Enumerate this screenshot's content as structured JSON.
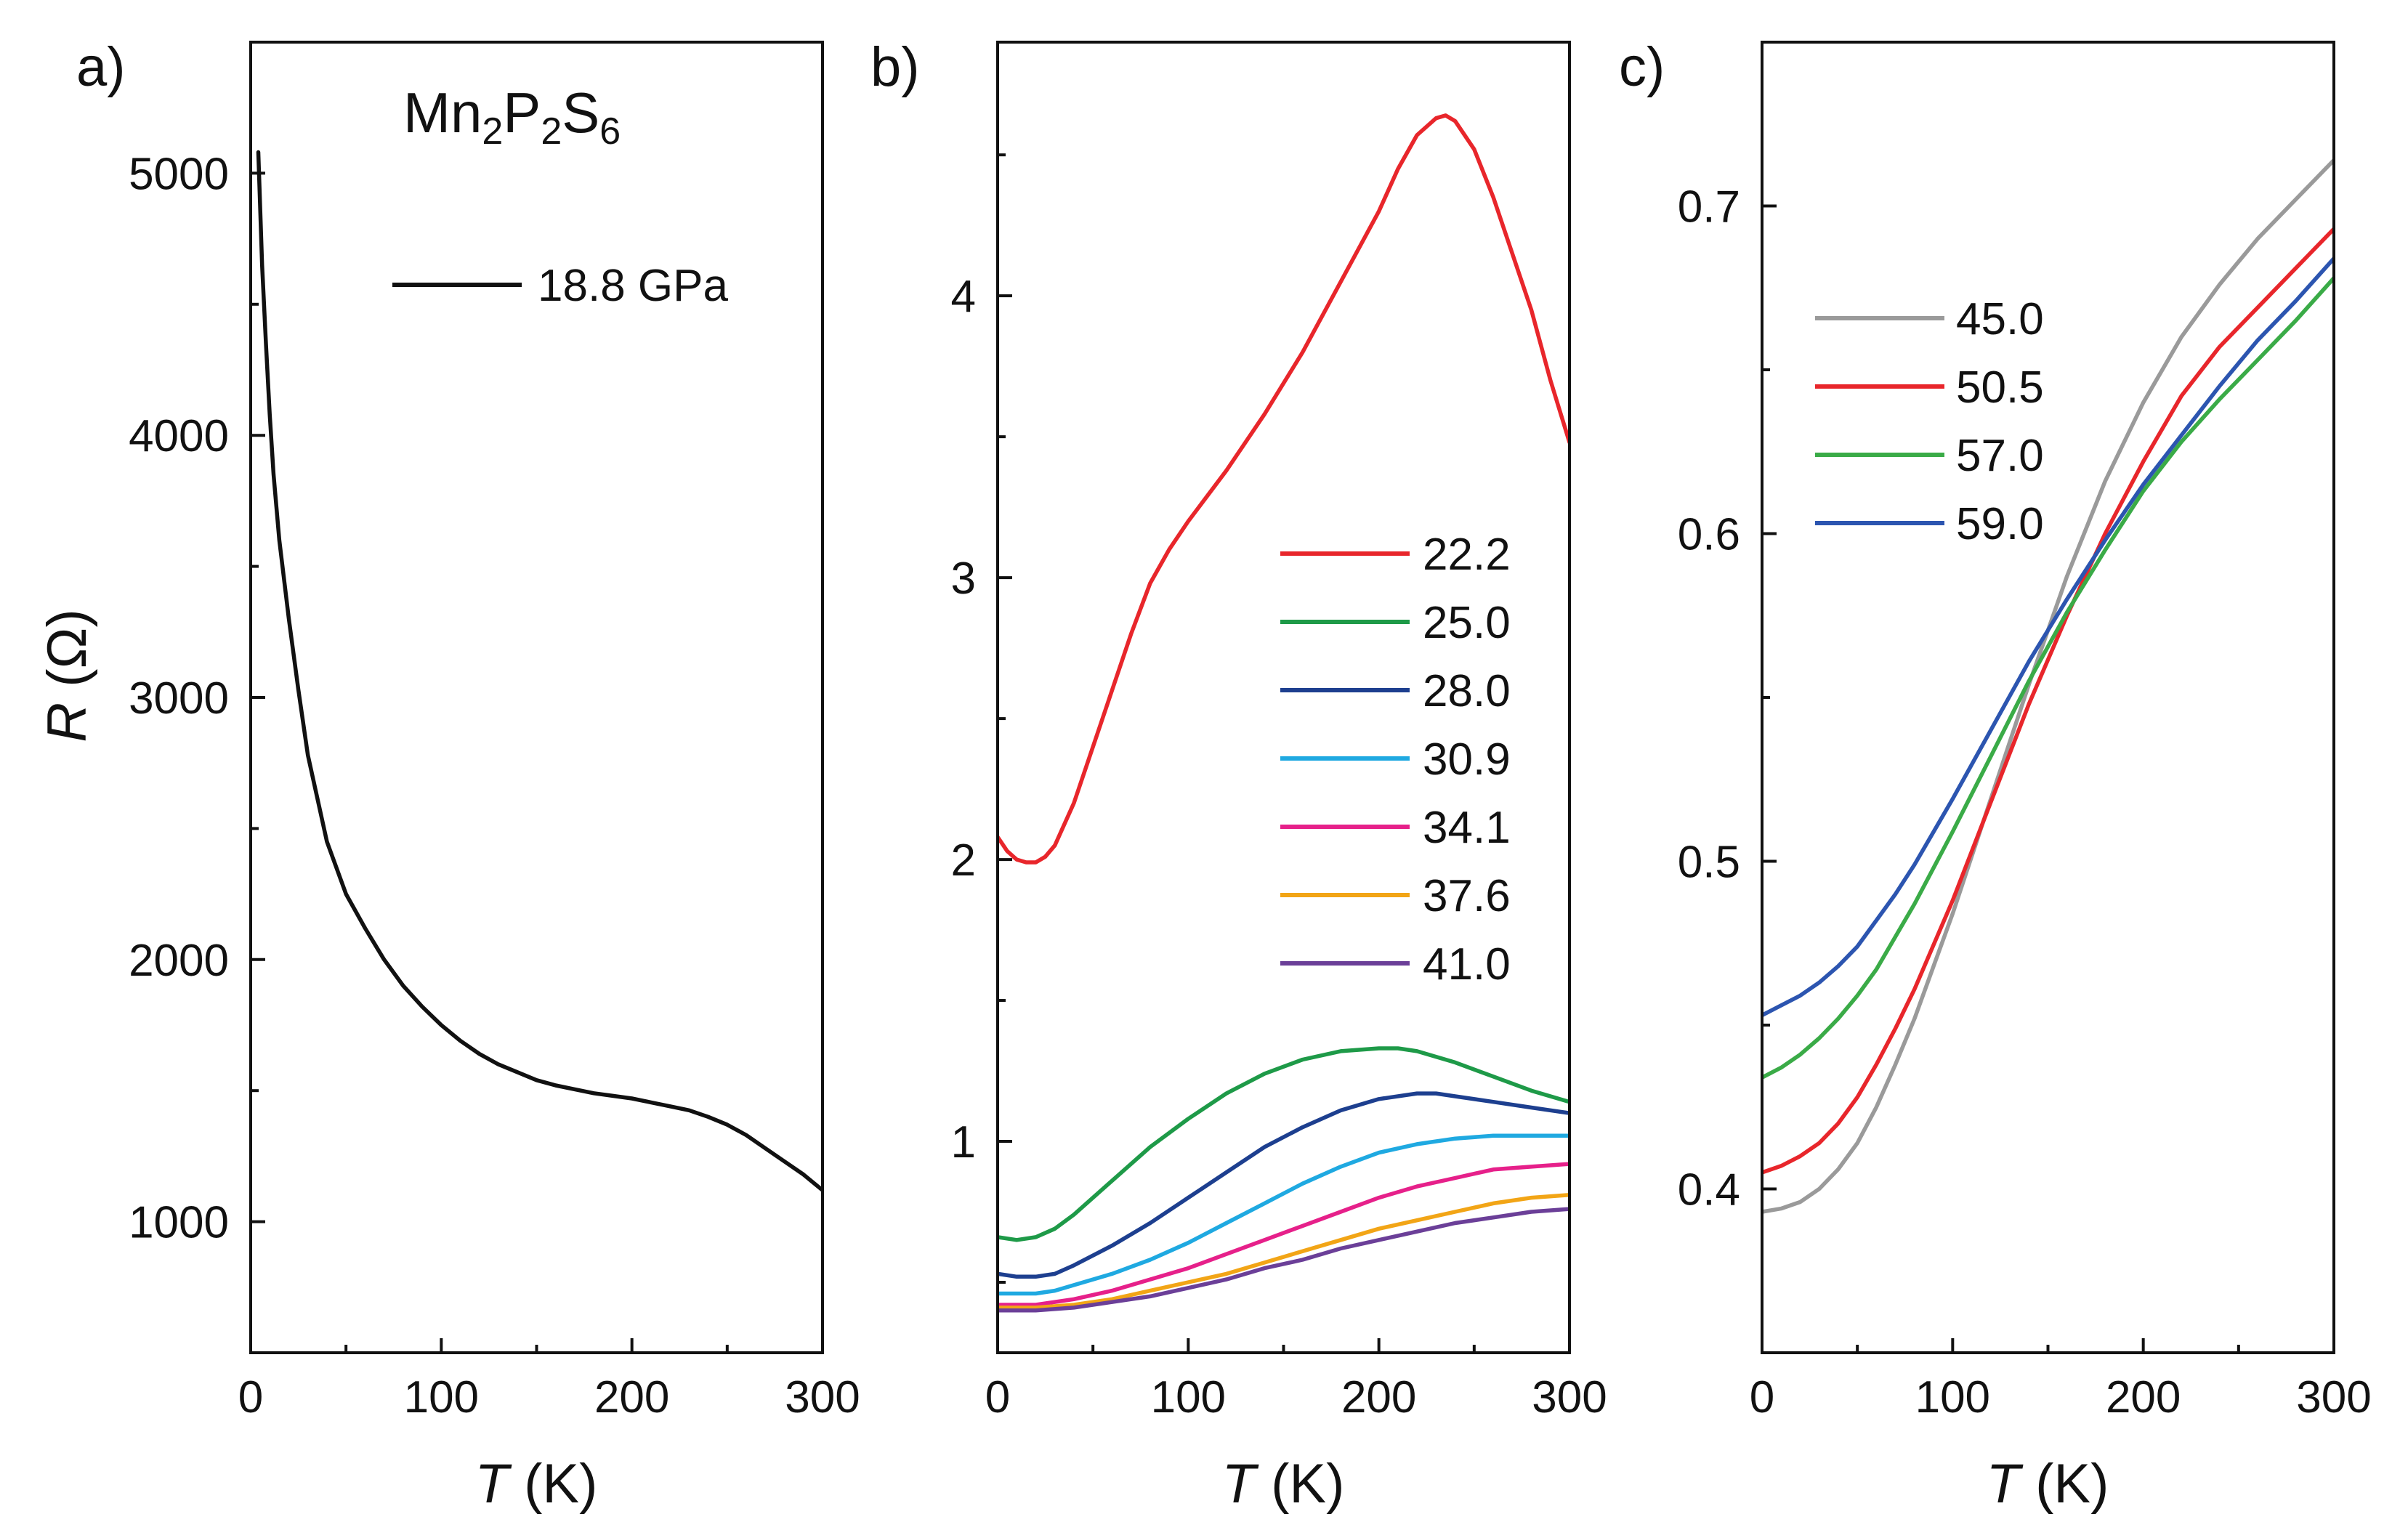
{
  "chart_data": [
    {
      "panel": "a)",
      "type": "line",
      "title": "Mn2P2S6",
      "title_parts": {
        "base1": "Mn",
        "sub1": "2",
        "base2": "P",
        "sub2": "2",
        "base3": "S",
        "sub3": "6"
      },
      "xlabel": {
        "italic": "T",
        "unit": " (K)"
      },
      "ylabel": {
        "italic": "R",
        "unit": " (Ω)"
      },
      "xlim": [
        0,
        300
      ],
      "ylim": [
        500,
        5500
      ],
      "xticks": [
        0,
        100,
        200,
        300
      ],
      "xtick_labels": [
        "0",
        "100",
        "200",
        "300"
      ],
      "yticks": [
        1000,
        2000,
        3000,
        4000,
        5000
      ],
      "ytick_labels": [
        "1000",
        "2000",
        "3000",
        "4000",
        "5000"
      ],
      "legend_position": "top-right",
      "series": [
        {
          "name": "18.8 GPa",
          "color": "#111111",
          "x": [
            4,
            6,
            8,
            10,
            12,
            15,
            20,
            25,
            30,
            40,
            50,
            60,
            70,
            80,
            90,
            100,
            110,
            120,
            130,
            140,
            150,
            160,
            170,
            180,
            190,
            200,
            210,
            220,
            230,
            240,
            250,
            260,
            270,
            280,
            290,
            300
          ],
          "y": [
            5080,
            4650,
            4350,
            4080,
            3850,
            3600,
            3300,
            3030,
            2780,
            2450,
            2250,
            2120,
            2000,
            1900,
            1820,
            1750,
            1690,
            1640,
            1600,
            1570,
            1540,
            1520,
            1505,
            1490,
            1480,
            1470,
            1455,
            1440,
            1425,
            1400,
            1370,
            1330,
            1280,
            1230,
            1180,
            1120
          ]
        }
      ]
    },
    {
      "panel": "b)",
      "type": "line",
      "xlabel": {
        "italic": "T",
        "unit": " (K)"
      },
      "ylabel": "",
      "xlim": [
        0,
        300
      ],
      "ylim": [
        0.25,
        4.9
      ],
      "xticks": [
        0,
        100,
        200,
        300
      ],
      "xtick_labels": [
        "0",
        "100",
        "200",
        "300"
      ],
      "yticks": [
        1,
        2,
        3,
        4
      ],
      "ytick_labels": [
        "1",
        "2",
        "3",
        "4"
      ],
      "minor_yticks": [
        0.5,
        1.5,
        2.5,
        3.5,
        4.5
      ],
      "legend_position": "center-right",
      "series": [
        {
          "name": "22.2",
          "color": "#e8262b",
          "x": [
            0,
            5,
            10,
            15,
            20,
            25,
            30,
            40,
            50,
            60,
            70,
            80,
            90,
            100,
            120,
            140,
            160,
            180,
            200,
            210,
            220,
            230,
            235,
            240,
            250,
            260,
            270,
            280,
            290,
            300
          ],
          "y": [
            2.08,
            2.03,
            2.0,
            1.99,
            1.99,
            2.01,
            2.05,
            2.2,
            2.4,
            2.6,
            2.8,
            2.98,
            3.1,
            3.2,
            3.38,
            3.58,
            3.8,
            4.05,
            4.3,
            4.45,
            4.57,
            4.63,
            4.64,
            4.62,
            4.52,
            4.35,
            4.15,
            3.95,
            3.7,
            3.48
          ]
        },
        {
          "name": "25.0",
          "color": "#1e9a48",
          "x": [
            0,
            10,
            20,
            30,
            40,
            60,
            80,
            100,
            120,
            140,
            160,
            180,
            200,
            210,
            220,
            240,
            260,
            280,
            300
          ],
          "y": [
            0.66,
            0.65,
            0.66,
            0.69,
            0.74,
            0.86,
            0.98,
            1.08,
            1.17,
            1.24,
            1.29,
            1.32,
            1.33,
            1.33,
            1.32,
            1.28,
            1.23,
            1.18,
            1.14
          ]
        },
        {
          "name": "28.0",
          "color": "#1d3f8f",
          "x": [
            0,
            10,
            20,
            30,
            40,
            60,
            80,
            100,
            120,
            140,
            160,
            180,
            200,
            220,
            230,
            240,
            260,
            280,
            300
          ],
          "y": [
            0.53,
            0.52,
            0.52,
            0.53,
            0.56,
            0.63,
            0.71,
            0.8,
            0.89,
            0.98,
            1.05,
            1.11,
            1.15,
            1.17,
            1.17,
            1.16,
            1.14,
            1.12,
            1.1
          ]
        },
        {
          "name": "30.9",
          "color": "#1fa9e1",
          "x": [
            0,
            10,
            20,
            30,
            40,
            60,
            80,
            100,
            120,
            140,
            160,
            180,
            200,
            220,
            240,
            260,
            280,
            300
          ],
          "y": [
            0.46,
            0.46,
            0.46,
            0.47,
            0.49,
            0.53,
            0.58,
            0.64,
            0.71,
            0.78,
            0.85,
            0.91,
            0.96,
            0.99,
            1.01,
            1.02,
            1.02,
            1.02
          ]
        },
        {
          "name": "34.1",
          "color": "#e6208a",
          "x": [
            0,
            20,
            40,
            60,
            80,
            100,
            120,
            140,
            160,
            180,
            200,
            220,
            240,
            260,
            280,
            300
          ],
          "y": [
            0.42,
            0.42,
            0.44,
            0.47,
            0.51,
            0.55,
            0.6,
            0.65,
            0.7,
            0.75,
            0.8,
            0.84,
            0.87,
            0.9,
            0.91,
            0.92
          ]
        },
        {
          "name": "37.6",
          "color": "#f2a516",
          "x": [
            0,
            20,
            40,
            60,
            80,
            100,
            120,
            140,
            160,
            180,
            200,
            220,
            240,
            260,
            280,
            300
          ],
          "y": [
            0.41,
            0.41,
            0.42,
            0.44,
            0.47,
            0.5,
            0.53,
            0.57,
            0.61,
            0.65,
            0.69,
            0.72,
            0.75,
            0.78,
            0.8,
            0.81
          ]
        },
        {
          "name": "41.0",
          "color": "#6b3f98",
          "x": [
            0,
            20,
            40,
            60,
            80,
            100,
            120,
            140,
            160,
            180,
            200,
            220,
            240,
            260,
            280,
            300
          ],
          "y": [
            0.4,
            0.4,
            0.41,
            0.43,
            0.45,
            0.48,
            0.51,
            0.55,
            0.58,
            0.62,
            0.65,
            0.68,
            0.71,
            0.73,
            0.75,
            0.76
          ]
        }
      ]
    },
    {
      "panel": "c)",
      "type": "line",
      "xlabel": {
        "italic": "T",
        "unit": " (K)"
      },
      "ylabel": "",
      "xlim": [
        0,
        300
      ],
      "ylim": [
        0.35,
        0.75
      ],
      "xticks": [
        0,
        100,
        200,
        300
      ],
      "xtick_labels": [
        "0",
        "100",
        "200",
        "300"
      ],
      "yticks": [
        0.4,
        0.5,
        0.6,
        0.7
      ],
      "ytick_labels": [
        "0.4",
        "0.5",
        "0.6",
        "0.7"
      ],
      "minor_yticks": [
        0.45,
        0.55,
        0.65
      ],
      "legend_position": "top-left",
      "series": [
        {
          "name": "45.0",
          "color": "#9a9a9a",
          "x": [
            0,
            10,
            20,
            30,
            40,
            50,
            60,
            70,
            80,
            100,
            120,
            140,
            160,
            180,
            200,
            220,
            240,
            260,
            280,
            300
          ],
          "y": [
            0.393,
            0.394,
            0.396,
            0.4,
            0.406,
            0.414,
            0.425,
            0.438,
            0.452,
            0.484,
            0.519,
            0.554,
            0.587,
            0.616,
            0.64,
            0.66,
            0.676,
            0.69,
            0.702,
            0.714
          ]
        },
        {
          "name": "50.5",
          "color": "#e8262b",
          "x": [
            0,
            10,
            20,
            30,
            40,
            50,
            60,
            70,
            80,
            100,
            120,
            140,
            160,
            180,
            200,
            220,
            240,
            260,
            280,
            300
          ],
          "y": [
            0.405,
            0.407,
            0.41,
            0.414,
            0.42,
            0.428,
            0.438,
            0.449,
            0.461,
            0.488,
            0.518,
            0.548,
            0.575,
            0.6,
            0.622,
            0.642,
            0.657,
            0.669,
            0.681,
            0.693
          ]
        },
        {
          "name": "57.0",
          "color": "#3aab47",
          "x": [
            0,
            10,
            20,
            30,
            40,
            50,
            60,
            70,
            80,
            100,
            120,
            140,
            160,
            180,
            200,
            220,
            240,
            260,
            280,
            300
          ],
          "y": [
            0.434,
            0.437,
            0.441,
            0.446,
            0.452,
            0.459,
            0.467,
            0.477,
            0.487,
            0.509,
            0.532,
            0.555,
            0.576,
            0.595,
            0.613,
            0.628,
            0.641,
            0.653,
            0.665,
            0.678
          ]
        },
        {
          "name": "59.0",
          "color": "#2c55b0",
          "x": [
            0,
            10,
            20,
            30,
            40,
            50,
            60,
            70,
            80,
            100,
            120,
            140,
            160,
            180,
            200,
            220,
            240,
            260,
            280,
            300
          ],
          "y": [
            0.453,
            0.456,
            0.459,
            0.463,
            0.468,
            0.474,
            0.482,
            0.49,
            0.499,
            0.519,
            0.54,
            0.561,
            0.58,
            0.598,
            0.615,
            0.63,
            0.645,
            0.659,
            0.671,
            0.684
          ]
        }
      ]
    }
  ]
}
